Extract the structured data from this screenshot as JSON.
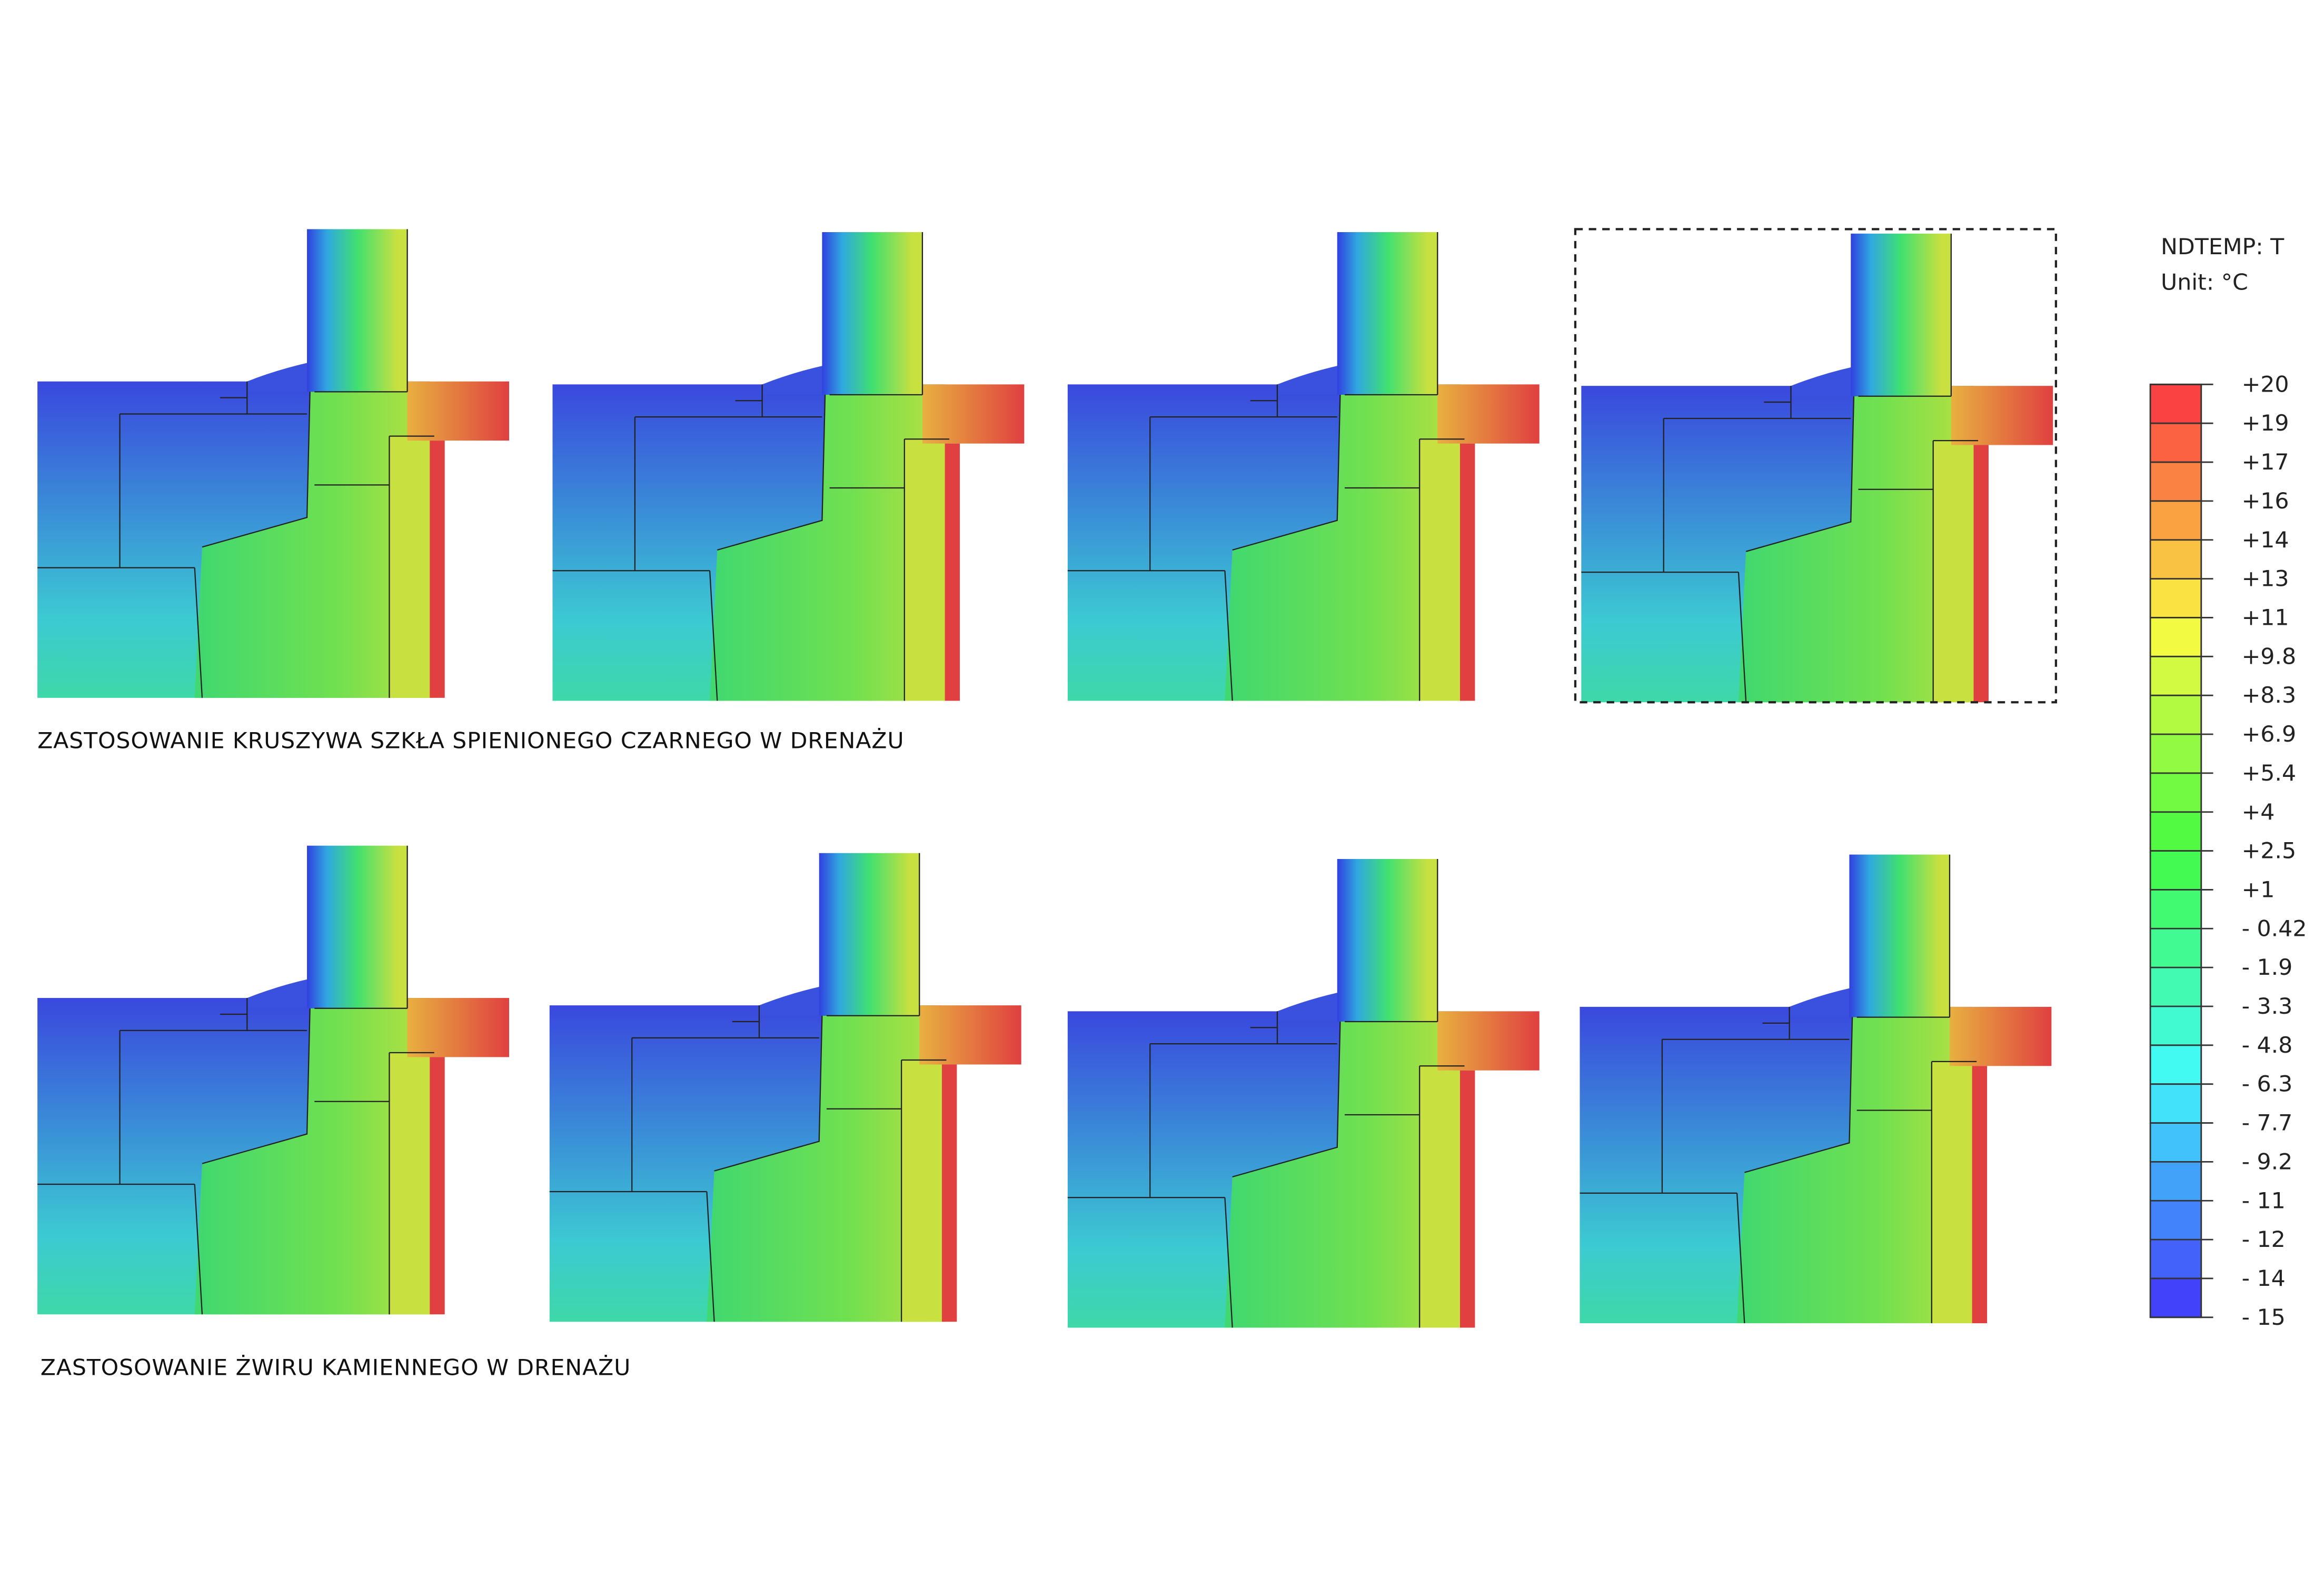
{
  "rows": [
    {
      "caption": "ZASTOSOWANIE KRUSZYWA SZKŁA SPIENIONEGO CZARNEGO W DRENAŻU"
    },
    {
      "caption": "ZASTOSOWANIE ŻWIRU KAMIENNEGO W DRENAŻU"
    }
  ],
  "legend": {
    "title": "NDTEMP: T",
    "unit": "Unit: °C",
    "labels": [
      "+20",
      "+19",
      "+17",
      "+16",
      "+14",
      "+13",
      "+11",
      "+9.8",
      "+8.3",
      "+6.9",
      "+5.4",
      "+4",
      "+2.5",
      "+1",
      "- 0.42",
      "- 1.9",
      "- 3.3",
      "- 4.8",
      "- 6.3",
      "- 7.7",
      "- 9.2",
      "- 11",
      "- 12",
      "- 14",
      "- 15"
    ]
  }
}
